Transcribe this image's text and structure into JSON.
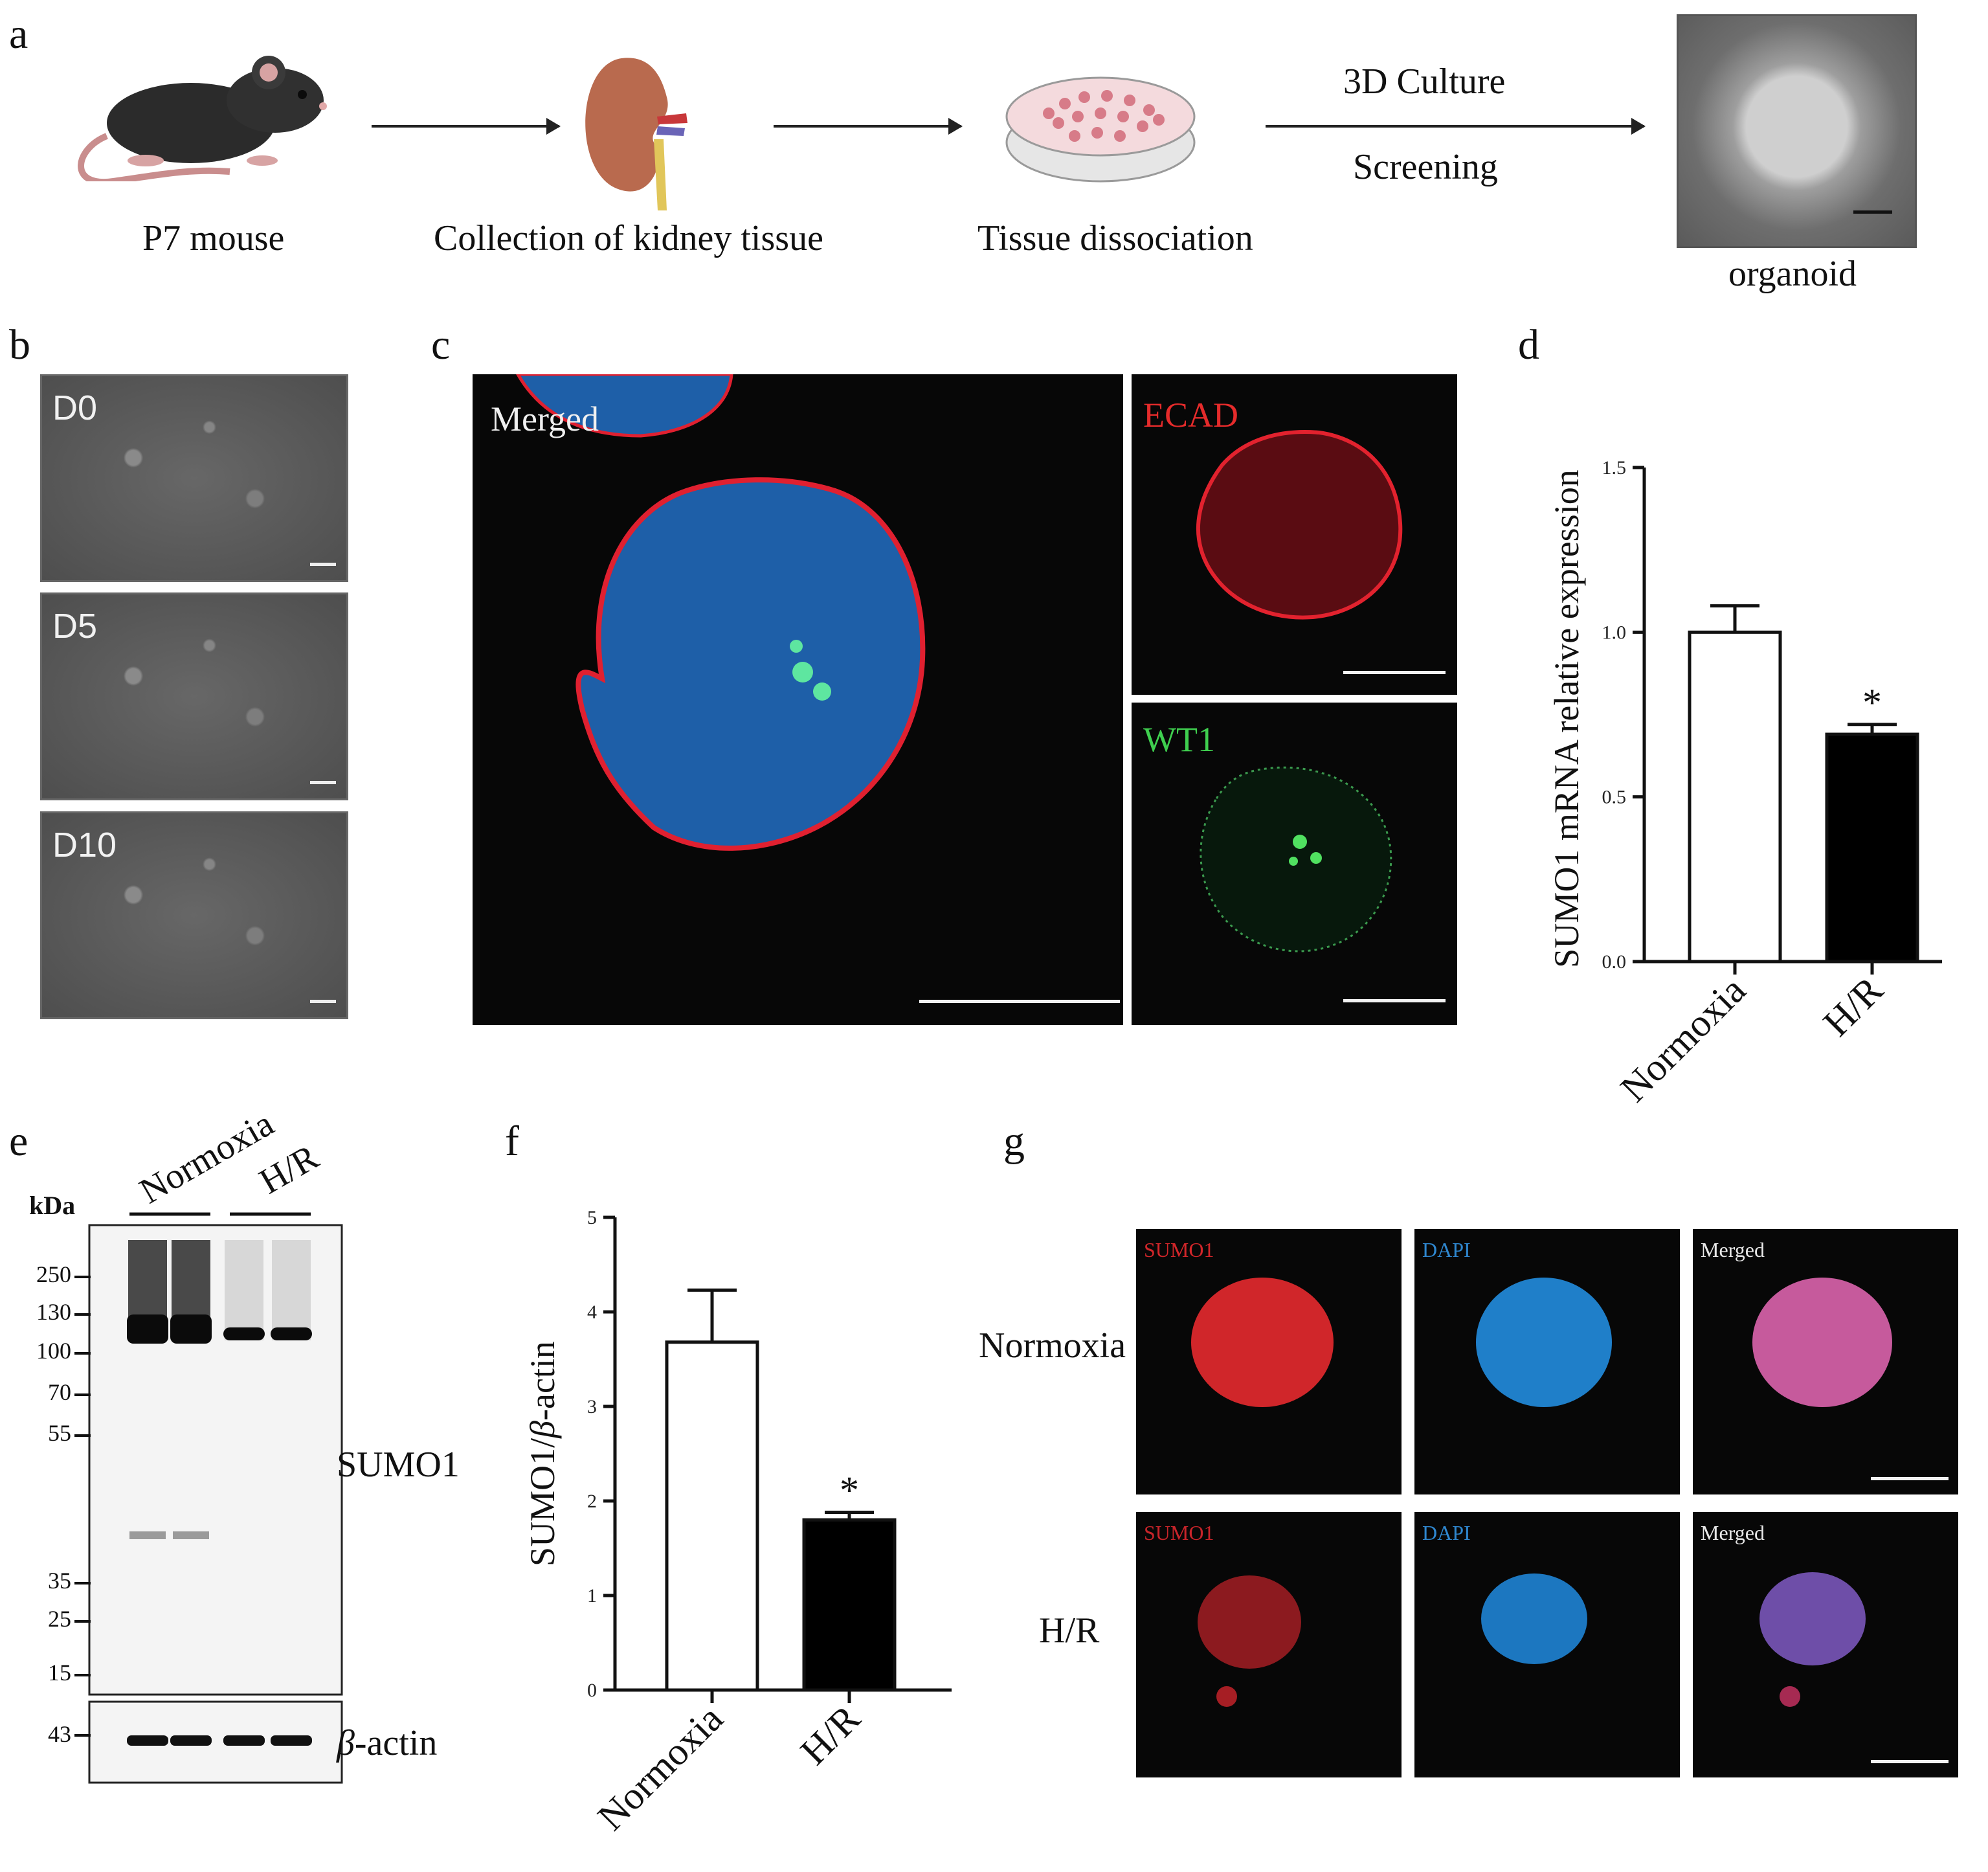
{
  "panel_labels": {
    "a": "a",
    "b": "b",
    "c": "c",
    "d": "d",
    "e": "e",
    "f": "f",
    "g": "g"
  },
  "panel_a": {
    "steps": [
      "P7 mouse",
      "Collection of kidney tissue",
      "Tissue dissociation",
      "organoid"
    ],
    "arrow_labels": {
      "top": "3D Culture",
      "bottom": "Screening"
    }
  },
  "panel_b": {
    "days": [
      "D0",
      "D5",
      "D10"
    ]
  },
  "panel_c": {
    "merged": "Merged",
    "ecad": "ECAD",
    "wt1": "WT1"
  },
  "panel_e": {
    "kda_label": "kDa",
    "groups": [
      "Normoxia",
      "H/R"
    ],
    "markers": [
      "250",
      "130",
      "100",
      "70",
      "55",
      "35",
      "25",
      "15"
    ],
    "actin_marker": "43",
    "band_labels": {
      "sumo1": "SUMO1",
      "actin_prefix": "β",
      "actin_suffix": "-actin"
    }
  },
  "panel_g": {
    "rows": [
      "Normoxia",
      "H/R"
    ],
    "channels": [
      "SUMO1",
      "DAPI",
      "Merged"
    ]
  },
  "chart_data": [
    {
      "type": "bar",
      "panel": "d",
      "categories": [
        "Normoxia",
        "H/R"
      ],
      "values": [
        1.0,
        0.69
      ],
      "errors": [
        0.08,
        0.03
      ],
      "fill_colors": [
        "#ffffff",
        "#000000"
      ],
      "significance": [
        "",
        "*"
      ],
      "ylabel": "SUMO1 mRNA relative expression",
      "ylim": [
        0,
        1.5
      ],
      "yticks": [
        "0.0",
        "0.5",
        "1.0",
        "1.5"
      ],
      "grid": false
    },
    {
      "type": "bar",
      "panel": "f",
      "categories": [
        "Normoxia",
        "H/R"
      ],
      "values": [
        3.68,
        1.8
      ],
      "errors": [
        0.55,
        0.08
      ],
      "fill_colors": [
        "#ffffff",
        "#000000"
      ],
      "significance": [
        "",
        "*"
      ],
      "ylabel_prefix": "SUMO1/",
      "ylabel_italic": "β",
      "ylabel_suffix": "-actin",
      "ylim": [
        0,
        5
      ],
      "yticks": [
        "0",
        "1",
        "2",
        "3",
        "4",
        "5"
      ],
      "grid": false
    }
  ]
}
